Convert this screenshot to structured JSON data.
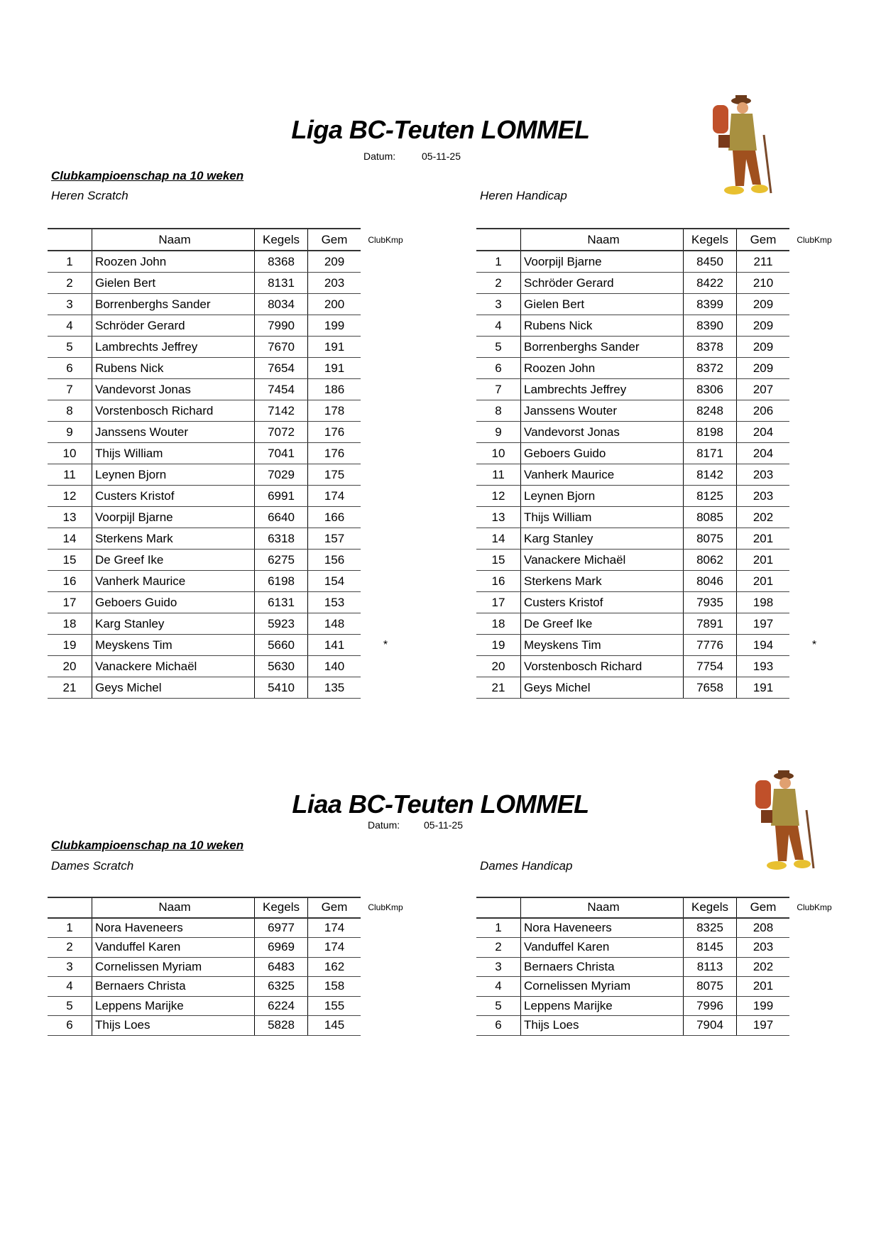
{
  "sections": [
    {
      "title": "Liga BC-Teuten LOMMEL",
      "datum_label": "Datum:",
      "datum_value": "05-11-25",
      "subtitle": "Clubkampioenschap na 10 weken",
      "left_label": "Heren Scratch",
      "right_label": "Heren Handicap",
      "headers": [
        "",
        "Naam",
        "Kegels",
        "Gem",
        "ClubKmp"
      ],
      "left_rows": [
        [
          "1",
          "Roozen John",
          "8368",
          "209",
          ""
        ],
        [
          "2",
          "Gielen Bert",
          "8131",
          "203",
          ""
        ],
        [
          "3",
          "Borrenberghs Sander",
          "8034",
          "200",
          ""
        ],
        [
          "4",
          "Schröder Gerard",
          "7990",
          "199",
          ""
        ],
        [
          "5",
          "Lambrechts Jeffrey",
          "7670",
          "191",
          ""
        ],
        [
          "6",
          "Rubens Nick",
          "7654",
          "191",
          ""
        ],
        [
          "7",
          "Vandevorst Jonas",
          "7454",
          "186",
          ""
        ],
        [
          "8",
          "Vorstenbosch Richard",
          "7142",
          "178",
          ""
        ],
        [
          "9",
          "Janssens Wouter",
          "7072",
          "176",
          ""
        ],
        [
          "10",
          "Thijs William",
          "7041",
          "176",
          ""
        ],
        [
          "11",
          "Leynen Bjorn",
          "7029",
          "175",
          ""
        ],
        [
          "12",
          "Custers Kristof",
          "6991",
          "174",
          ""
        ],
        [
          "13",
          "Voorpijl Bjarne",
          "6640",
          "166",
          ""
        ],
        [
          "14",
          "Sterkens Mark",
          "6318",
          "157",
          ""
        ],
        [
          "15",
          "De Greef Ike",
          "6275",
          "156",
          ""
        ],
        [
          "16",
          "Vanherk Maurice",
          "6198",
          "154",
          ""
        ],
        [
          "17",
          "Geboers Guido",
          "6131",
          "153",
          ""
        ],
        [
          "18",
          "Karg Stanley",
          "5923",
          "148",
          ""
        ],
        [
          "19",
          "Meyskens Tim",
          "5660",
          "141",
          "*"
        ],
        [
          "20",
          "Vanackere Michaël",
          "5630",
          "140",
          ""
        ],
        [
          "21",
          "Geys Michel",
          "5410",
          "135",
          ""
        ]
      ],
      "right_rows": [
        [
          "1",
          "Voorpijl Bjarne",
          "8450",
          "211",
          ""
        ],
        [
          "2",
          "Schröder Gerard",
          "8422",
          "210",
          ""
        ],
        [
          "3",
          "Gielen Bert",
          "8399",
          "209",
          ""
        ],
        [
          "4",
          "Rubens Nick",
          "8390",
          "209",
          ""
        ],
        [
          "5",
          "Borrenberghs Sander",
          "8378",
          "209",
          ""
        ],
        [
          "6",
          "Roozen John",
          "8372",
          "209",
          ""
        ],
        [
          "7",
          "Lambrechts Jeffrey",
          "8306",
          "207",
          ""
        ],
        [
          "8",
          "Janssens Wouter",
          "8248",
          "206",
          ""
        ],
        [
          "9",
          "Vandevorst Jonas",
          "8198",
          "204",
          ""
        ],
        [
          "10",
          "Geboers Guido",
          "8171",
          "204",
          ""
        ],
        [
          "11",
          "Vanherk Maurice",
          "8142",
          "203",
          ""
        ],
        [
          "12",
          "Leynen Bjorn",
          "8125",
          "203",
          ""
        ],
        [
          "13",
          "Thijs William",
          "8085",
          "202",
          ""
        ],
        [
          "14",
          "Karg Stanley",
          "8075",
          "201",
          ""
        ],
        [
          "15",
          "Vanackere Michaël",
          "8062",
          "201",
          ""
        ],
        [
          "16",
          "Sterkens Mark",
          "8046",
          "201",
          ""
        ],
        [
          "17",
          "Custers Kristof",
          "7935",
          "198",
          ""
        ],
        [
          "18",
          "De Greef Ike",
          "7891",
          "197",
          ""
        ],
        [
          "19",
          "Meyskens Tim",
          "7776",
          "194",
          "*"
        ],
        [
          "20",
          "Vorstenbosch Richard",
          "7754",
          "193",
          ""
        ],
        [
          "21",
          "Geys Michel",
          "7658",
          "191",
          ""
        ]
      ]
    },
    {
      "title": "Liaa BC-Teuten LOMMEL",
      "datum_label": "Datum:",
      "datum_value": "05-11-25",
      "subtitle": "Clubkampioenschap na 10 weken",
      "left_label": "Dames Scratch",
      "right_label": "Dames Handicap",
      "headers": [
        "",
        "Naam",
        "Kegels",
        "Gem",
        "ClubKmp"
      ],
      "left_rows": [
        [
          "1",
          "Nora Haveneers",
          "6977",
          "174",
          ""
        ],
        [
          "2",
          "Vanduffel Karen",
          "6969",
          "174",
          ""
        ],
        [
          "3",
          "Cornelissen Myriam",
          "6483",
          "162",
          ""
        ],
        [
          "4",
          "Bernaers Christa",
          "6325",
          "158",
          ""
        ],
        [
          "5",
          "Leppens Marijke",
          "6224",
          "155",
          ""
        ],
        [
          "6",
          "Thijs Loes",
          "5828",
          "145",
          ""
        ]
      ],
      "right_rows": [
        [
          "1",
          "Nora Haveneers",
          "8325",
          "208",
          ""
        ],
        [
          "2",
          "Vanduffel Karen",
          "8145",
          "203",
          ""
        ],
        [
          "3",
          "Bernaers Christa",
          "8113",
          "202",
          ""
        ],
        [
          "4",
          "Cornelissen Myriam",
          "8075",
          "201",
          ""
        ],
        [
          "5",
          "Leppens Marijke",
          "7996",
          "199",
          ""
        ],
        [
          "6",
          "Thijs Loes",
          "7904",
          "197",
          ""
        ]
      ]
    }
  ]
}
